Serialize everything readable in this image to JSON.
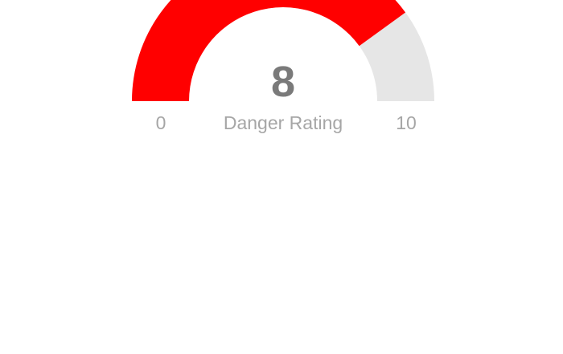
{
  "chart_data": {
    "type": "gauge",
    "value": 8,
    "min": 0,
    "max": 10,
    "label": "Danger Rating",
    "value_text": "8",
    "min_text": "0",
    "max_text": "10",
    "colors": {
      "filled": "#ff0000",
      "track": "#e6e6e6",
      "value_text": "#7a7a7a",
      "labels": "#a6a6a6"
    }
  }
}
